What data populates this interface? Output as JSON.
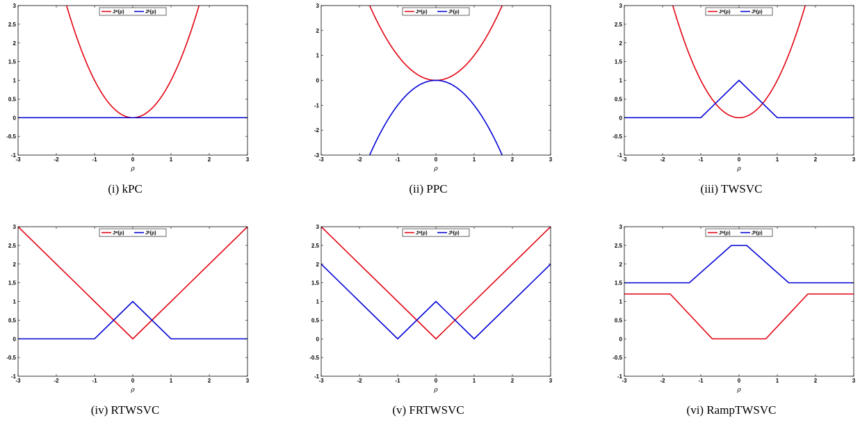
{
  "figure": {
    "colors": {
      "jw": "#e3000f",
      "jb": "#0000d6"
    },
    "xlabel": "ρ",
    "legend": [
      "Jʷ(ρ)",
      "Jᵇ(ρ)"
    ]
  },
  "chart_data": [
    {
      "type": "line",
      "caption": "(i)  kPC",
      "xlim": [
        -3,
        3
      ],
      "ylim": [
        -1,
        3
      ],
      "xticks": [
        "-3",
        "-2",
        "-1",
        "0",
        "1",
        "2",
        "3"
      ],
      "yticks": [
        "-1",
        "-0.5",
        "0",
        "0.5",
        "1",
        "1.5",
        "2",
        "2.5",
        "3"
      ],
      "xlabel": "ρ",
      "legend_position": "top-center",
      "grid": false,
      "series": [
        {
          "name": "Jʷ(ρ)",
          "color": "#e3000f",
          "function": "rho^2",
          "x": [
            -1.732,
            -1.5,
            -1,
            -0.5,
            0,
            0.5,
            1,
            1.5,
            1.732
          ],
          "y": [
            3,
            2.25,
            1,
            0.25,
            0,
            0.25,
            1,
            2.25,
            3
          ]
        },
        {
          "name": "Jᵇ(ρ)",
          "color": "#0000d6",
          "x": [
            -3,
            3
          ],
          "y": [
            0,
            0
          ]
        }
      ]
    },
    {
      "type": "line",
      "caption": "(ii)  PPC",
      "xlim": [
        -3,
        3
      ],
      "ylim": [
        -3,
        3
      ],
      "xticks": [
        "-3",
        "-2",
        "-1",
        "0",
        "1",
        "2",
        "3"
      ],
      "yticks": [
        "-3",
        "-2",
        "-1",
        "0",
        "1",
        "2",
        "3"
      ],
      "xlabel": "ρ",
      "legend_position": "top-center",
      "grid": false,
      "series": [
        {
          "name": "Jʷ(ρ)",
          "color": "#e3000f",
          "function": "rho^2",
          "x": [
            -1.732,
            -1,
            0,
            1,
            1.732
          ],
          "y": [
            3,
            1,
            0,
            1,
            3
          ]
        },
        {
          "name": "Jᵇ(ρ)",
          "color": "#0000d6",
          "function": "-rho^2",
          "x": [
            -1.732,
            -1,
            0,
            1,
            1.732
          ],
          "y": [
            -3,
            -1,
            0,
            -1,
            -3
          ]
        }
      ]
    },
    {
      "type": "line",
      "caption": "(iii)  TWSVC",
      "xlim": [
        -3,
        3
      ],
      "ylim": [
        -1,
        3
      ],
      "xticks": [
        "-3",
        "-2",
        "-1",
        "0",
        "1",
        "2",
        "3"
      ],
      "yticks": [
        "-1",
        "-0.5",
        "0",
        "0.5",
        "1",
        "1.5",
        "2",
        "2.5",
        "3"
      ],
      "xlabel": "ρ",
      "legend_position": "top-center",
      "grid": false,
      "series": [
        {
          "name": "Jʷ(ρ)",
          "color": "#e3000f",
          "function": "rho^2",
          "x": [
            -1.732,
            -1,
            0,
            1,
            1.732
          ],
          "y": [
            3,
            1,
            0,
            1,
            3
          ]
        },
        {
          "name": "Jᵇ(ρ)",
          "color": "#0000d6",
          "x": [
            -3,
            -1,
            0,
            1,
            3
          ],
          "y": [
            0,
            0,
            1,
            0,
            0
          ]
        }
      ]
    },
    {
      "type": "line",
      "caption": "(iv)  RTWSVC",
      "xlim": [
        -3,
        3
      ],
      "ylim": [
        -1,
        3
      ],
      "xticks": [
        "-3",
        "-2",
        "-1",
        "0",
        "1",
        "2",
        "3"
      ],
      "yticks": [
        "-1",
        "-0.5",
        "0",
        "0.5",
        "1",
        "1.5",
        "2",
        "2.5",
        "3"
      ],
      "xlabel": "ρ",
      "legend_position": "top-center",
      "grid": false,
      "series": [
        {
          "name": "Jʷ(ρ)",
          "color": "#e3000f",
          "x": [
            -3,
            0,
            3
          ],
          "y": [
            3,
            0,
            3
          ]
        },
        {
          "name": "Jᵇ(ρ)",
          "color": "#0000d6",
          "x": [
            -3,
            -1,
            0,
            1,
            3
          ],
          "y": [
            0,
            0,
            1,
            0,
            0
          ]
        }
      ]
    },
    {
      "type": "line",
      "caption": "(v)  FRTWSVC",
      "xlim": [
        -3,
        3
      ],
      "ylim": [
        -1,
        3
      ],
      "xticks": [
        "-3",
        "-2",
        "-1",
        "0",
        "1",
        "2",
        "3"
      ],
      "yticks": [
        "-1",
        "-0.5",
        "0",
        "0.5",
        "1",
        "1.5",
        "2",
        "2.5",
        "3"
      ],
      "xlabel": "ρ",
      "legend_position": "top-center",
      "grid": false,
      "series": [
        {
          "name": "Jʷ(ρ)",
          "color": "#e3000f",
          "x": [
            -3,
            0,
            3
          ],
          "y": [
            3,
            0,
            3
          ]
        },
        {
          "name": "Jᵇ(ρ)",
          "color": "#0000d6",
          "x": [
            -3,
            -1,
            0,
            1,
            3
          ],
          "y": [
            2,
            0,
            1,
            0,
            2
          ]
        }
      ]
    },
    {
      "type": "line",
      "caption": "(vi)  RampTWSVC",
      "xlim": [
        -3,
        3
      ],
      "ylim": [
        -1,
        3
      ],
      "xticks": [
        "-3",
        "-2",
        "-1",
        "0",
        "1",
        "2",
        "3"
      ],
      "yticks": [
        "-1",
        "-0.5",
        "0",
        "0.5",
        "1",
        "1.5",
        "2",
        "2.5",
        "3"
      ],
      "xlabel": "ρ",
      "legend_position": "top-center",
      "grid": false,
      "series": [
        {
          "name": "Jʷ(ρ)",
          "color": "#e3000f",
          "x": [
            -3,
            -1.8,
            -0.7,
            0.7,
            1.8,
            3
          ],
          "y": [
            1.2,
            1.2,
            0,
            0,
            1.2,
            1.2
          ]
        },
        {
          "name": "Jᵇ(ρ)",
          "color": "#0000d6",
          "x": [
            -3,
            -1.3,
            -0.2,
            0.2,
            1.3,
            3
          ],
          "y": [
            1.5,
            1.5,
            2.5,
            2.5,
            1.5,
            1.5
          ]
        }
      ]
    }
  ]
}
